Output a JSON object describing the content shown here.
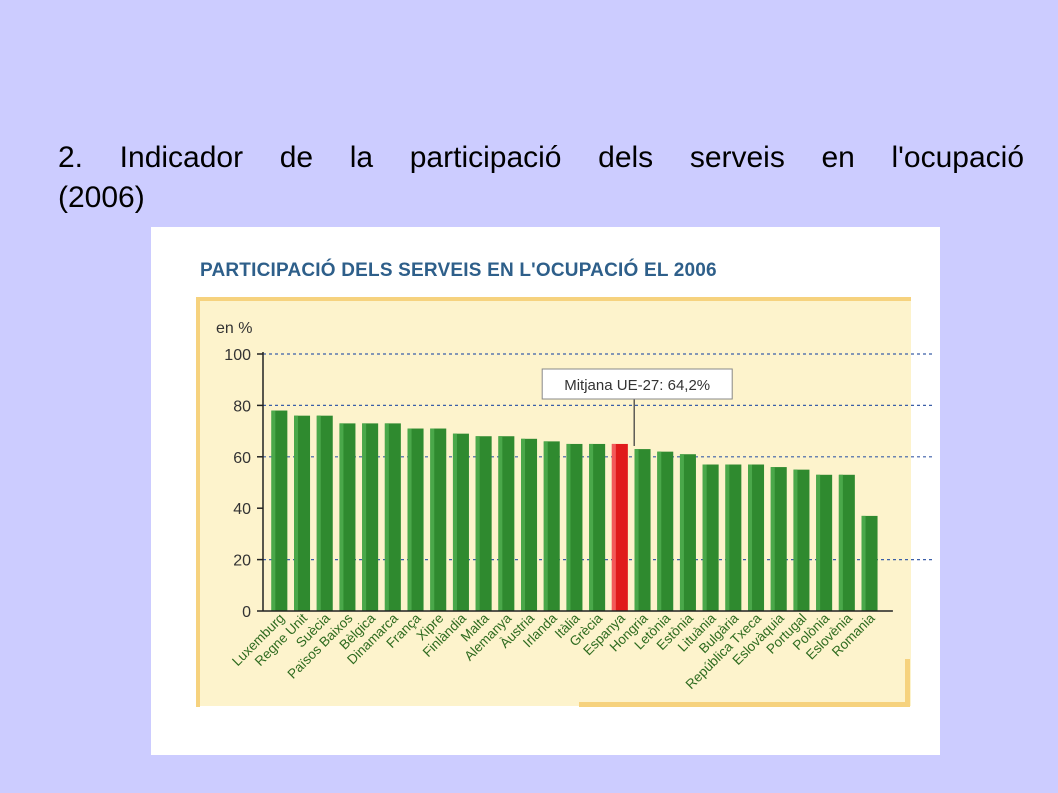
{
  "slide": {
    "title_line1": "2. Indicador de la participació dels serveis en l'ocupació",
    "title_line2": "(2006)"
  },
  "chart_data": {
    "type": "bar",
    "title": "PARTICIPACIÓ DELS SERVEIS EN L'OCUPACIÓ EL 2006",
    "ylabel": "en %",
    "ylim": [
      0,
      100
    ],
    "yticks": [
      0,
      20,
      40,
      60,
      80,
      100
    ],
    "grid": "dashed horizontal at 20, 60, 80, 100",
    "categories": [
      "Luxemburg",
      "Regne Unit",
      "Suècia",
      "Països Baixos",
      "Bèlgica",
      "Dinamarca",
      "França",
      "Xipre",
      "Finlàndia",
      "Malta",
      "Alemanya",
      "Àustria",
      "Irlanda",
      "Itàlia",
      "Grècia",
      "Espanya",
      "Hongria",
      "Letònia",
      "Estònia",
      "Lituània",
      "Bulgària",
      "República Txeca",
      "Eslovàquia",
      "Portugal",
      "Polònia",
      "Eslovènia",
      "Romania"
    ],
    "values": [
      78,
      76,
      76,
      73,
      73,
      73,
      71,
      71,
      69,
      68,
      68,
      67,
      66,
      65,
      65,
      65,
      63,
      62,
      61,
      57,
      57,
      57,
      56,
      55,
      53,
      53,
      37
    ],
    "highlight": "Espanya",
    "bar_color": "#2f8a2f",
    "highlight_color": "#e01b1b",
    "annotation": {
      "text": "Mitjana UE-27: 64,2%",
      "value": 64.2
    }
  }
}
